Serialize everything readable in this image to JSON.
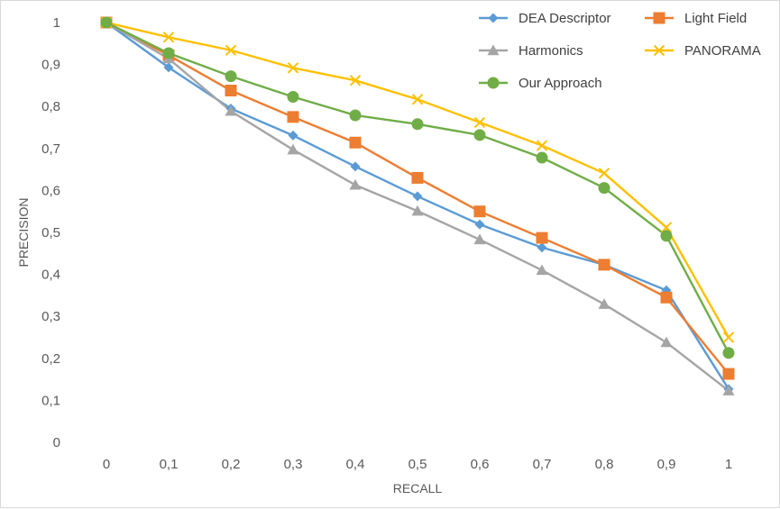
{
  "chart_data": {
    "type": "line",
    "title": "",
    "xlabel": "RECALL",
    "ylabel": "PRECISION",
    "categories": [
      "0",
      "0,1",
      "0,2",
      "0,3",
      "0,4",
      "0,5",
      "0,6",
      "0,7",
      "0,8",
      "0,9",
      "1"
    ],
    "y_ticks": [
      "0",
      "0,1",
      "0,2",
      "0,3",
      "0,4",
      "0,5",
      "0,6",
      "0,7",
      "0,8",
      "0,9",
      "1"
    ],
    "ylim": [
      0,
      1
    ],
    "grid": false,
    "legend_position": "top-right",
    "series": [
      {
        "name": "DEA Descriptor",
        "color": "#5b9bd5",
        "marker": "diamond",
        "values": [
          1.0,
          0.893,
          0.795,
          0.731,
          0.657,
          0.586,
          0.519,
          0.464,
          0.423,
          0.362,
          0.127
        ]
      },
      {
        "name": "Light Field",
        "color": "#ed7d31",
        "marker": "square",
        "values": [
          1.0,
          0.922,
          0.838,
          0.775,
          0.714,
          0.63,
          0.55,
          0.487,
          0.423,
          0.345,
          0.163
        ]
      },
      {
        "name": "Harmonics",
        "color": "#a5a5a5",
        "marker": "triangle",
        "values": [
          1.0,
          0.914,
          0.789,
          0.697,
          0.613,
          0.551,
          0.483,
          0.41,
          0.329,
          0.238,
          0.123
        ]
      },
      {
        "name": "PANORAMA",
        "color": "#ffc000",
        "marker": "x",
        "values": [
          1.0,
          0.965,
          0.934,
          0.892,
          0.862,
          0.817,
          0.762,
          0.707,
          0.641,
          0.512,
          0.25
        ]
      },
      {
        "name": "Our Approach",
        "color": "#70ad47",
        "marker": "circle",
        "values": [
          1.0,
          0.927,
          0.872,
          0.823,
          0.779,
          0.758,
          0.732,
          0.678,
          0.606,
          0.492,
          0.213
        ]
      }
    ]
  }
}
